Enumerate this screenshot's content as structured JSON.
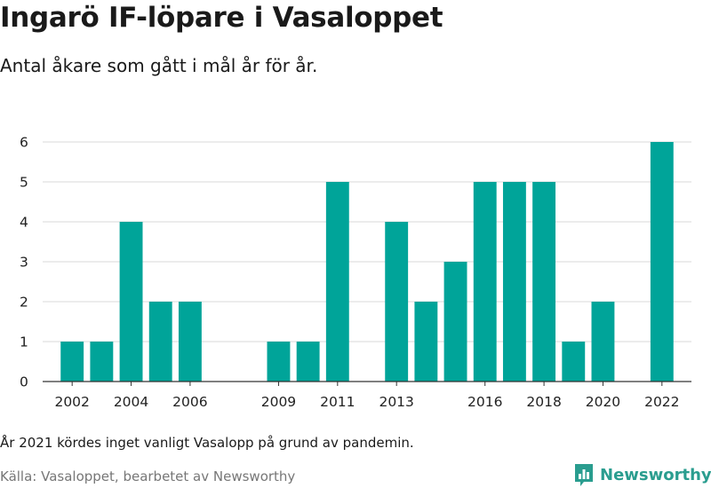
{
  "title": "Ingarö IF-löpare i Vasaloppet",
  "subtitle": "Antal åkare som gått i mål år för år.",
  "note": "År 2021 kördes inget vanligt Vasalopp på grund av pandemin.",
  "source": "Källa: Vasaloppet, bearbetet av Newsworthy",
  "brand": {
    "name": "Newsworthy",
    "color": "#2a9d8f",
    "icon": "bar-chart-logo-icon"
  },
  "colors": {
    "bar": "#00a499",
    "grid": "#d9d9d9",
    "axis": "#333333"
  },
  "chart_data": {
    "type": "bar",
    "title": "Ingarö IF-löpare i Vasaloppet",
    "subtitle": "Antal åkare som gått i mål år för år.",
    "xlabel": "",
    "ylabel": "",
    "x": [
      2002,
      2003,
      2004,
      2005,
      2006,
      2009,
      2010,
      2011,
      2013,
      2014,
      2015,
      2016,
      2017,
      2018,
      2019,
      2020,
      2022
    ],
    "values": [
      1,
      1,
      4,
      2,
      2,
      1,
      1,
      5,
      4,
      2,
      3,
      5,
      5,
      5,
      1,
      2,
      6
    ],
    "xlim": [
      2001,
      2023
    ],
    "ylim": [
      0,
      6
    ],
    "y_ticks": [
      0,
      1,
      2,
      3,
      4,
      5,
      6
    ],
    "x_tick_labels": [
      "2002",
      "2004",
      "2006",
      "2009",
      "2011",
      "2013",
      "2016",
      "2018",
      "2020",
      "2022"
    ],
    "grid": true,
    "legend": false
  }
}
